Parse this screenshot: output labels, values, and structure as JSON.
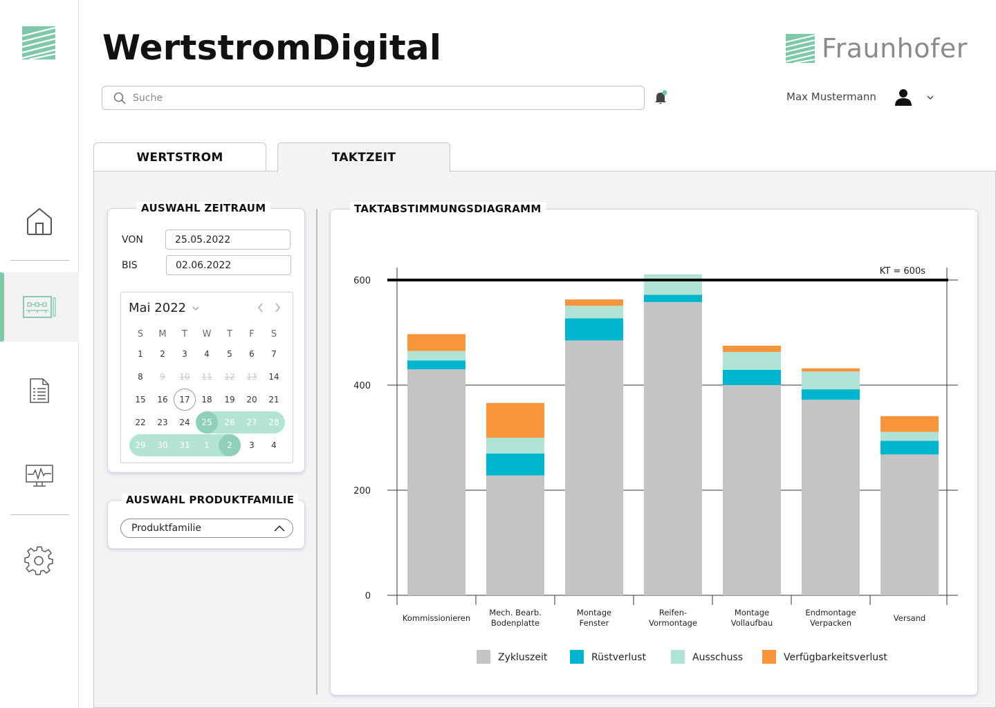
{
  "app": {
    "title": "WertstromDigital",
    "brand": "Fraunhofer"
  },
  "search": {
    "placeholder": "Suche"
  },
  "user": {
    "name": "Max Mustermann"
  },
  "nav": {
    "items": [
      {
        "name": "home",
        "icon": "home-icon",
        "active": false
      },
      {
        "name": "value-stream-map",
        "icon": "value-stream-map-icon",
        "active": true
      },
      {
        "name": "report",
        "icon": "report-list-icon",
        "active": false
      },
      {
        "name": "monitor",
        "icon": "monitor-pulse-icon",
        "active": false
      },
      {
        "name": "settings",
        "icon": "gear-icon",
        "active": false
      }
    ]
  },
  "tabs": [
    {
      "label": "WERTSTROM",
      "active": false
    },
    {
      "label": "TAKTZEIT",
      "active": true
    }
  ],
  "zeitraum": {
    "title": "AUSWAHL ZEITRAUM",
    "from_label": "VON",
    "from_value": "25.05.2022",
    "to_label": "BIS",
    "to_value": "02.06.2022",
    "calendar": {
      "month": "Mai 2022",
      "weekdays": [
        "S",
        "M",
        "T",
        "W",
        "T",
        "F",
        "S"
      ],
      "weeks": [
        [
          "1",
          "2",
          "3",
          "4",
          "5",
          "6",
          "7"
        ],
        [
          "8",
          "9",
          "10",
          "11",
          "12",
          "13",
          "14"
        ],
        [
          "15",
          "16",
          "17",
          "18",
          "19",
          "20",
          "21"
        ],
        [
          "22",
          "23",
          "24",
          "25",
          "26",
          "27",
          "28"
        ],
        [
          "29",
          "30",
          "31",
          "1",
          "2",
          "3",
          "4"
        ]
      ],
      "disabled": [
        "9",
        "10",
        "11",
        "12",
        "13"
      ],
      "today": "17",
      "range_start": "25",
      "range_end": "2"
    }
  },
  "produkt": {
    "title": "AUSWAHL PRODUKTFAMILIE",
    "select_value": "Produktfamilie"
  },
  "chart_data": {
    "type": "bar",
    "stacked": true,
    "title": "TAKTABSTIMMUNGSDIAGRAMM",
    "categories": [
      [
        "Kommissionieren"
      ],
      [
        "Mech. Bearb.",
        "Bodenplatte"
      ],
      [
        "Montage",
        "Fenster"
      ],
      [
        "Reifen-",
        "Vormontage"
      ],
      [
        "Montage",
        "Vollaufbau"
      ],
      [
        "Endmontage",
        "Verpacken"
      ],
      [
        "Versand"
      ]
    ],
    "series": [
      {
        "name": "Zykluszeit",
        "color": "#c4c4c4",
        "values": [
          430,
          228,
          485,
          558,
          400,
          372,
          268
        ]
      },
      {
        "name": "Rüstverlust",
        "color": "#00b5cc",
        "values": [
          17,
          42,
          42,
          14,
          29,
          20,
          26
        ]
      },
      {
        "name": "Ausschuss",
        "color": "#b0e3d6",
        "values": [
          18,
          30,
          24,
          39,
          34,
          34,
          17
        ]
      },
      {
        "name": "Verfügbarkeitsverlust",
        "color": "#f7953a",
        "values": [
          32,
          66,
          12,
          0,
          12,
          6,
          30
        ]
      }
    ],
    "ylim": [
      0,
      620
    ],
    "yticks": [
      0,
      200,
      400,
      600
    ],
    "reference_line": {
      "value": 600,
      "label": "KT = 600s"
    },
    "grid": true,
    "legend_position": "bottom"
  }
}
